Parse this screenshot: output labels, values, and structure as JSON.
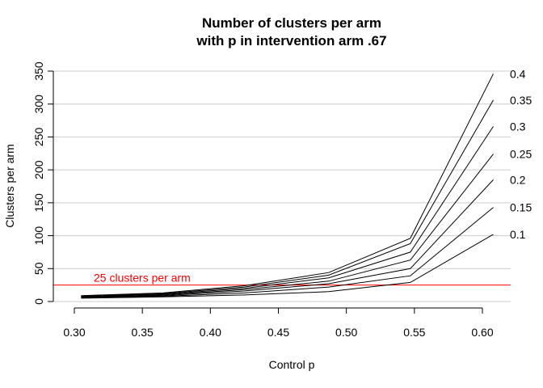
{
  "chart_data": {
    "type": "line",
    "title_line1": "Number of clusters per arm",
    "title_line2": "with p in intervention arm .67",
    "xlabel": "Control p",
    "ylabel": "Clusters per arm",
    "xlim": [
      0.3,
      0.62
    ],
    "ylim": [
      0,
      350
    ],
    "xticks": [
      0.3,
      0.35,
      0.4,
      0.45,
      0.5,
      0.55,
      0.6
    ],
    "xtick_labels": [
      "0.30",
      "0.35",
      "0.40",
      "0.45",
      "0.50",
      "0.55",
      "0.60"
    ],
    "yticks": [
      0,
      50,
      100,
      150,
      200,
      250,
      300,
      350
    ],
    "ytick_labels": [
      "0",
      "50",
      "100",
      "150",
      "200",
      "250",
      "300",
      "350"
    ],
    "grid": true,
    "gridlines_y": [
      0,
      50,
      100,
      150,
      200,
      250,
      300,
      350
    ],
    "x": [
      0.305,
      0.365,
      0.425,
      0.487,
      0.547,
      0.608
    ],
    "series": [
      {
        "name": "0.4",
        "values": [
          9,
          13,
          24,
          44,
          96,
          346
        ]
      },
      {
        "name": "0.35",
        "values": [
          8,
          12,
          22,
          40,
          88,
          306
        ]
      },
      {
        "name": "0.3",
        "values": [
          8,
          11,
          20,
          36,
          75,
          266
        ]
      },
      {
        "name": "0.25",
        "values": [
          7,
          10,
          18,
          31,
          63,
          224
        ]
      },
      {
        "name": "0.2",
        "values": [
          7,
          9,
          16,
          27,
          50,
          185
        ]
      },
      {
        "name": "0.15",
        "values": [
          6,
          8,
          13,
          22,
          39,
          143
        ]
      },
      {
        "name": "0.1",
        "values": [
          5,
          7,
          10,
          15,
          29,
          102
        ]
      }
    ],
    "reference_line": {
      "y": 25,
      "label": "25 clusters per arm",
      "color": "#ff0000"
    },
    "line_color": "#000000",
    "grid_color": "#cccccc"
  }
}
